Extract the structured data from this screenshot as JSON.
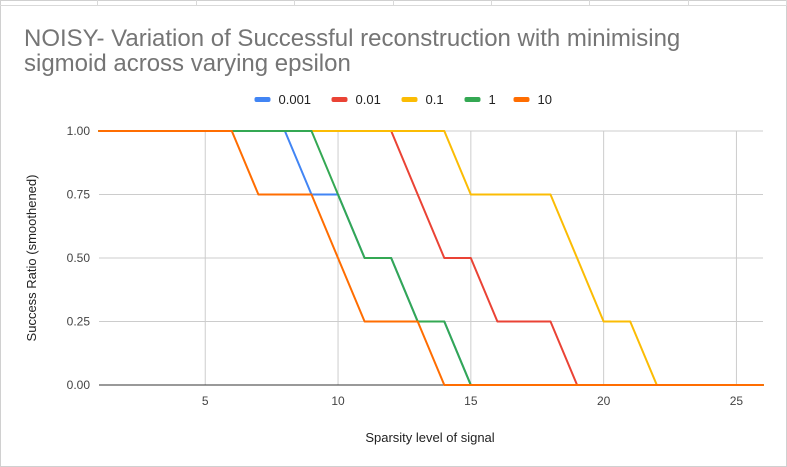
{
  "chart_data": {
    "type": "line",
    "title": "NOISY- Variation of Successful reconstruction with minimising sigmoid across varying epsilon",
    "xlabel": "Sparsity level of signal",
    "ylabel": "Success Ratio (smoothened)",
    "xlim": [
      1,
      26
    ],
    "ylim": [
      0,
      1
    ],
    "xticks": [
      5,
      10,
      15,
      20,
      25
    ],
    "yticks": [
      0,
      0.25,
      0.5,
      0.75,
      1
    ],
    "ytick_labels": [
      "0.00",
      "0.25",
      "0.50",
      "0.75",
      "1.00"
    ],
    "grid": true,
    "legend_position": "top",
    "series": [
      {
        "name": "0.001",
        "color": "#4285f4",
        "x": [
          1,
          2,
          3,
          4,
          5,
          6,
          7,
          8,
          9,
          10,
          11,
          12,
          13,
          14,
          15,
          16,
          17,
          18,
          19,
          20,
          21,
          22,
          23,
          24,
          25,
          26
        ],
        "y": [
          1,
          1,
          1,
          1,
          1,
          1,
          1,
          1,
          0.75,
          0.75,
          0.5,
          0.5,
          0.25,
          0.25,
          0,
          0,
          0,
          0,
          0,
          0,
          0,
          0,
          0,
          0,
          0,
          0
        ]
      },
      {
        "name": "0.01",
        "color": "#ea4335",
        "x": [
          1,
          2,
          3,
          4,
          5,
          6,
          7,
          8,
          9,
          10,
          11,
          12,
          13,
          14,
          15,
          16,
          17,
          18,
          19,
          20,
          21,
          22,
          23,
          24,
          25,
          26
        ],
        "y": [
          1,
          1,
          1,
          1,
          1,
          1,
          1,
          1,
          1,
          1,
          1,
          1,
          0.75,
          0.5,
          0.5,
          0.25,
          0.25,
          0.25,
          0,
          0,
          0,
          0,
          0,
          0,
          0,
          0
        ]
      },
      {
        "name": "0.1",
        "color": "#fbbc04",
        "x": [
          1,
          2,
          3,
          4,
          5,
          6,
          7,
          8,
          9,
          10,
          11,
          12,
          13,
          14,
          15,
          16,
          17,
          18,
          19,
          20,
          21,
          22,
          23,
          24,
          25,
          26
        ],
        "y": [
          1,
          1,
          1,
          1,
          1,
          1,
          1,
          1,
          1,
          1,
          1,
          1,
          1,
          1,
          0.75,
          0.75,
          0.75,
          0.75,
          0.5,
          0.25,
          0.25,
          0,
          0,
          0,
          0,
          0
        ]
      },
      {
        "name": "1",
        "color": "#34a853",
        "x": [
          1,
          2,
          3,
          4,
          5,
          6,
          7,
          8,
          9,
          10,
          11,
          12,
          13,
          14,
          15,
          16,
          17,
          18,
          19,
          20,
          21,
          22,
          23,
          24,
          25,
          26
        ],
        "y": [
          1,
          1,
          1,
          1,
          1,
          1,
          1,
          1,
          1,
          0.75,
          0.5,
          0.5,
          0.25,
          0.25,
          0,
          0,
          0,
          0,
          0,
          0,
          0,
          0,
          0,
          0,
          0,
          0
        ]
      },
      {
        "name": "10",
        "color": "#ff6d01",
        "x": [
          1,
          2,
          3,
          4,
          5,
          6,
          7,
          8,
          9,
          10,
          11,
          12,
          13,
          14,
          15,
          16,
          17,
          18,
          19,
          20,
          21,
          22,
          23,
          24,
          25,
          26
        ],
        "y": [
          1,
          1,
          1,
          1,
          1,
          1,
          0.75,
          0.75,
          0.75,
          0.5,
          0.25,
          0.25,
          0.25,
          0,
          0,
          0,
          0,
          0,
          0,
          0,
          0,
          0,
          0,
          0,
          0,
          0
        ]
      }
    ]
  }
}
